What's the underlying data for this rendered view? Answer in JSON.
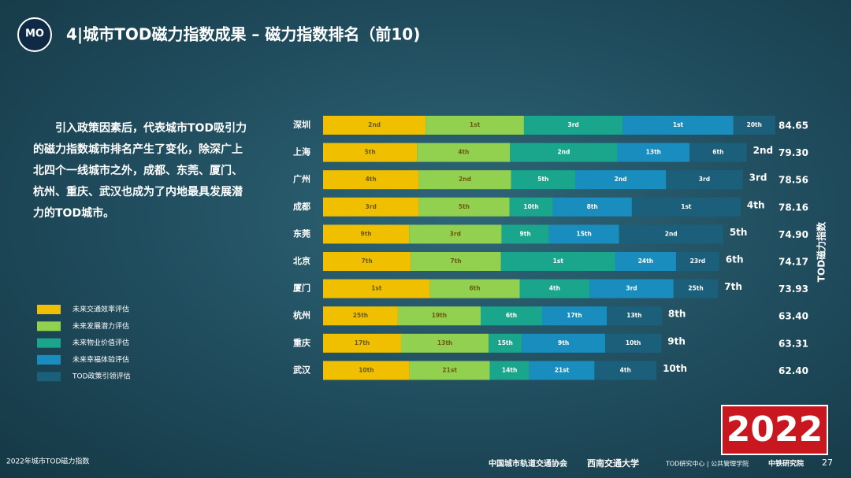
{
  "slide": {
    "logo": "MO",
    "title": "4|城市TOD磁力指数成果 – 磁力指数排名（前10)",
    "paragraph": "引入政策因素后，代表城市TOD吸引力的磁力指数城市排名产生了变化，除深广上北四个一线城市之外，成都、东莞、厦门、杭州、重庆、武汉也成为了内地最具发展潜力的TOD城市。",
    "year_badge": "2022",
    "footer_left": "2022年城市TOD磁力指数",
    "footer_orgs": [
      "中国城市轨道交通协会",
      "西南交通大学",
      "TOD研究中心 | 公共管理学院",
      "中铁研究院"
    ],
    "page_number": "27"
  },
  "chart_data": {
    "type": "stacked-bar-horizontal",
    "axis_label": "TOD磁力指数",
    "categories": [
      "深圳",
      "上海",
      "广州",
      "成都",
      "东莞",
      "北京",
      "厦门",
      "杭州",
      "重庆",
      "武汉"
    ],
    "totals": [
      84.65,
      79.3,
      78.56,
      78.16,
      74.9,
      74.17,
      73.93,
      63.4,
      63.31,
      62.4
    ],
    "total_labels": [
      "84.65",
      "79.30",
      "78.56",
      "78.16",
      "74.90",
      "74.17",
      "73.93",
      "63.40",
      "63.31",
      "62.40"
    ],
    "overall_rank": [
      null,
      "2nd",
      "3rd",
      "4th",
      "5th",
      "6th",
      "7th",
      "8th",
      "9th",
      "10th"
    ],
    "series": [
      {
        "name": "未来交通效率评估",
        "color": "#f0c000",
        "values": [
          19.2,
          17.6,
          17.9,
          17.9,
          16.1,
          16.4,
          20.0,
          14.0,
          14.6,
          16.2
        ],
        "ranks": [
          "2nd",
          "5th",
          "4th",
          "3rd",
          "9th",
          "7th",
          "1st",
          "25th",
          "17th",
          "10th"
        ]
      },
      {
        "name": "未来发展潜力评估",
        "color": "#92d050",
        "values": [
          18.4,
          17.4,
          17.3,
          17.0,
          17.3,
          16.9,
          16.8,
          15.5,
          16.4,
          15.0
        ],
        "ranks": [
          "1st",
          "4th",
          "2nd",
          "5th",
          "3rd",
          "7th",
          "6th",
          "19th",
          "13th",
          "21st"
        ]
      },
      {
        "name": "未来物业价值评估",
        "color": "#1aa68c",
        "values": [
          18.5,
          20.1,
          12.0,
          8.1,
          8.9,
          21.4,
          13.1,
          11.5,
          6.2,
          7.4
        ],
        "ranks": [
          "3rd",
          "2nd",
          "5th",
          "10th",
          "9th",
          "1st",
          "4th",
          "6th",
          "15th",
          "14th"
        ]
      },
      {
        "name": "未来幸福体验评估",
        "color": "#1a8dbf",
        "values": [
          20.7,
          13.5,
          17.0,
          14.8,
          13.1,
          11.37,
          15.7,
          12.1,
          15.6,
          12.2
        ],
        "ranks": [
          "1st",
          "13th",
          "2nd",
          "8th",
          "15th",
          "24th",
          "3rd",
          "17th",
          "9th",
          "21st"
        ]
      },
      {
        "name": "TOD政策引领评估",
        "color": "#1b5f7b",
        "values": [
          7.85,
          10.7,
          14.36,
          20.36,
          19.5,
          8.1,
          8.33,
          10.3,
          10.51,
          11.6
        ],
        "ranks": [
          "20th",
          "6th",
          "3rd",
          "1st",
          "2nd",
          "23rd",
          "25th",
          "13th",
          "10th",
          "4th"
        ]
      }
    ]
  }
}
